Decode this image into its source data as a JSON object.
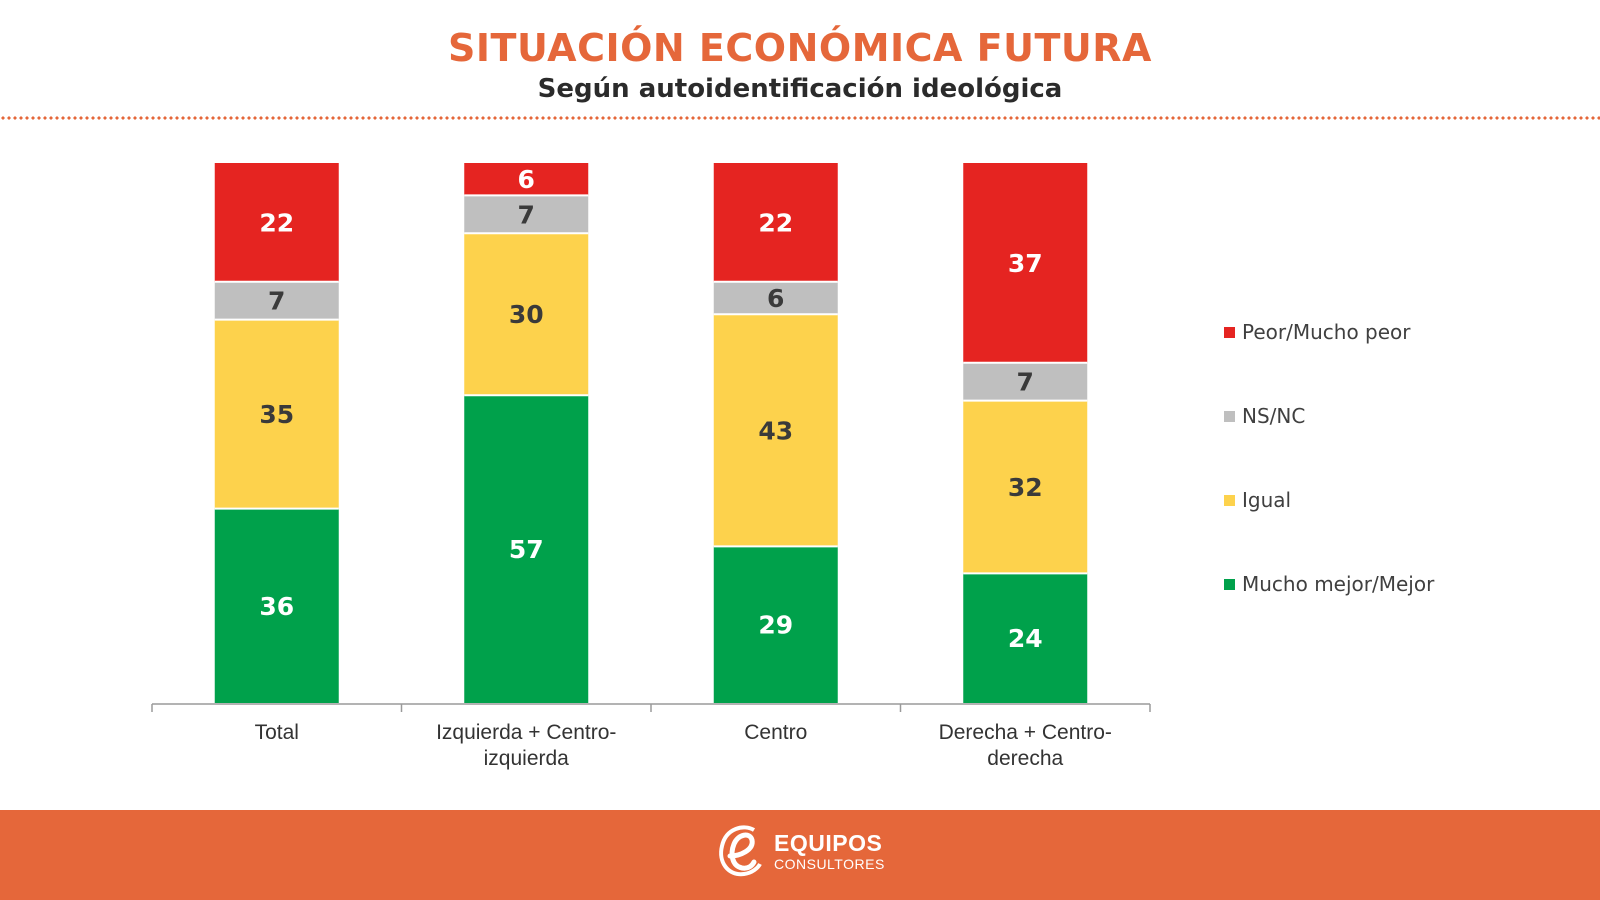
{
  "header": {
    "title": "SITUACIÓN ECONÓMICA FUTURA",
    "subtitle": "Según autoidentificación ideológica"
  },
  "footer": {
    "brand_name": "EQUIPOS",
    "brand_sub": "CONSULTORES",
    "background_color": "#E5673A"
  },
  "chart_data": {
    "type": "bar",
    "stacked": true,
    "title": "SITUACIÓN ECONÓMICA FUTURA",
    "subtitle": "Según autoidentificación ideológica",
    "xlabel": "",
    "ylabel": "",
    "ylim": [
      0,
      100
    ],
    "grid": false,
    "legend_position": "right",
    "categories": [
      "Total",
      "Izquierda + Centro-izquierda",
      "Centro",
      "Derecha + Centro-derecha"
    ],
    "category_lines": [
      [
        "Total"
      ],
      [
        "Izquierda + Centro-",
        "izquierda"
      ],
      [
        "Centro"
      ],
      [
        "Derecha + Centro-",
        "derecha"
      ]
    ],
    "series": [
      {
        "name": "Mucho mejor/Mejor",
        "color": "#00A14B",
        "label_color": "#ffffff",
        "values": [
          36,
          57,
          29,
          24
        ]
      },
      {
        "name": "Igual",
        "color": "#FDD24C",
        "label_color": "#3a3a3a",
        "values": [
          35,
          30,
          43,
          32
        ]
      },
      {
        "name": "NS/NC",
        "color": "#BFBFBF",
        "label_color": "#3a3a3a",
        "values": [
          7,
          7,
          6,
          7
        ]
      },
      {
        "name": "Peor/Mucho peor",
        "color": "#E52421",
        "label_color": "#ffffff",
        "values": [
          22,
          6,
          22,
          37
        ]
      }
    ],
    "legend_order": [
      "Peor/Mucho peor",
      "NS/NC",
      "Igual",
      "Mucho mejor/Mejor"
    ]
  }
}
